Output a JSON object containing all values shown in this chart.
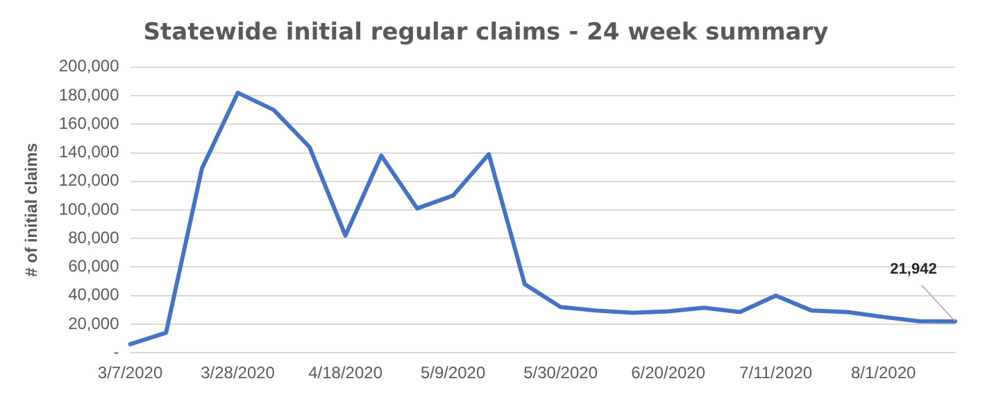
{
  "chart_data": {
    "type": "line",
    "title": "Statewide initial regular claims - 24 week summary",
    "ylabel": "# of initial claims",
    "categories": [
      "3/7/2020",
      null,
      null,
      "3/28/2020",
      null,
      null,
      "4/18/2020",
      null,
      null,
      "5/9/2020",
      null,
      null,
      "5/30/2020",
      null,
      null,
      "6/20/2020",
      null,
      null,
      "7/11/2020",
      null,
      null,
      "8/1/2020",
      null,
      null
    ],
    "series": [
      {
        "color": "#4472c4",
        "values": [
          6000,
          14000,
          129000,
          182000,
          170000,
          144000,
          82000,
          138000,
          101000,
          110000,
          139000,
          48000,
          32000,
          29500,
          28000,
          29000,
          31500,
          28500,
          40000,
          29500,
          28500,
          25000,
          22000,
          21942
        ],
        "value_labels": [
          null,
          null,
          null,
          null,
          null,
          null,
          null,
          null,
          null,
          null,
          null,
          null,
          null,
          null,
          null,
          null,
          null,
          null,
          null,
          null,
          null,
          null,
          null,
          "21,942"
        ]
      }
    ],
    "ylim": [
      0,
      200000
    ],
    "yticks": [
      {
        "value": 0,
        "label": "-"
      },
      {
        "value": 20000,
        "label": "20,000"
      },
      {
        "value": 40000,
        "label": "40,000"
      },
      {
        "value": 60000,
        "label": "60,000"
      },
      {
        "value": 80000,
        "label": "80,000"
      },
      {
        "value": 100000,
        "label": "100,000"
      },
      {
        "value": 120000,
        "label": "120,000"
      },
      {
        "value": 140000,
        "label": "140,000"
      },
      {
        "value": 160000,
        "label": "160,000"
      },
      {
        "value": 180000,
        "label": "180,000"
      },
      {
        "value": 200000,
        "label": "200,000"
      }
    ],
    "grid": "y",
    "legend": false,
    "marker": "none",
    "line_style": "solid"
  }
}
